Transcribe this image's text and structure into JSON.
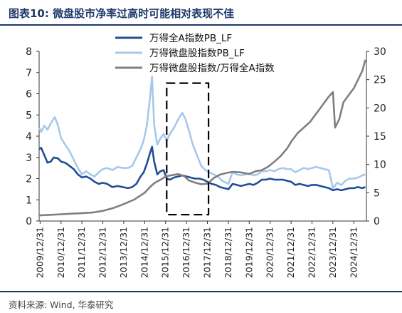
{
  "header": {
    "title": "图表10:  微盘股市净率过高时可能相对表现不佳"
  },
  "footer": {
    "source": "资料来源: Wind, 华泰研究"
  },
  "chart_data": {
    "type": "line",
    "title": "图表10:  微盘股市净率过高时可能相对表现不佳",
    "x_labels": [
      "2009/12/31",
      "2010/12/31",
      "2011/12/31",
      "2012/12/31",
      "2013/12/31",
      "2014/12/31",
      "2015/12/31",
      "2016/12/31",
      "2017/12/31",
      "2018/12/31",
      "2019/12/31",
      "2020/12/31",
      "2021/12/31",
      "2022/12/31",
      "2023/12/31",
      "2024/12/31"
    ],
    "x_range": [
      2009.95,
      2025.6
    ],
    "left_axis": {
      "ylim": [
        0,
        8
      ],
      "ticks": [
        "0",
        "1",
        "2",
        "3",
        "4",
        "5",
        "6",
        "7",
        "8"
      ]
    },
    "right_axis": {
      "ylim": [
        0,
        30
      ],
      "ticks": [
        "0",
        "5",
        "10",
        "15",
        "20",
        "25",
        "30"
      ]
    },
    "legend_position": "top-center",
    "highlight_box": {
      "x_start": 2016.05,
      "x_end": 2018.05,
      "y_left_start": 0.3,
      "y_left_end": 6.5,
      "style": "dashed"
    },
    "series": [
      {
        "name": "万得全A指数PB_LF",
        "axis": "left",
        "color": "#1f4e96",
        "points": [
          [
            2009.95,
            3.4
          ],
          [
            2010.05,
            3.45
          ],
          [
            2010.2,
            3.1
          ],
          [
            2010.35,
            2.75
          ],
          [
            2010.5,
            2.8
          ],
          [
            2010.65,
            3.0
          ],
          [
            2010.85,
            2.95
          ],
          [
            2011.0,
            2.8
          ],
          [
            2011.2,
            2.75
          ],
          [
            2011.4,
            2.6
          ],
          [
            2011.6,
            2.45
          ],
          [
            2011.8,
            2.2
          ],
          [
            2012.0,
            2.05
          ],
          [
            2012.2,
            2.1
          ],
          [
            2012.4,
            2.0
          ],
          [
            2012.6,
            1.85
          ],
          [
            2012.8,
            1.75
          ],
          [
            2013.0,
            1.8
          ],
          [
            2013.2,
            1.75
          ],
          [
            2013.45,
            1.6
          ],
          [
            2013.7,
            1.65
          ],
          [
            2013.95,
            1.6
          ],
          [
            2014.2,
            1.55
          ],
          [
            2014.4,
            1.6
          ],
          [
            2014.6,
            1.75
          ],
          [
            2014.8,
            2.1
          ],
          [
            2014.95,
            2.3
          ],
          [
            2015.1,
            2.7
          ],
          [
            2015.25,
            3.2
          ],
          [
            2015.35,
            3.5
          ],
          [
            2015.45,
            2.8
          ],
          [
            2015.6,
            2.2
          ],
          [
            2015.75,
            2.35
          ],
          [
            2015.9,
            2.4
          ],
          [
            2016.05,
            2.0
          ],
          [
            2016.2,
            1.95
          ],
          [
            2016.4,
            2.05
          ],
          [
            2016.6,
            2.1
          ],
          [
            2016.8,
            2.15
          ],
          [
            2017.0,
            2.1
          ],
          [
            2017.2,
            2.05
          ],
          [
            2017.4,
            2.0
          ],
          [
            2017.6,
            2.0
          ],
          [
            2017.8,
            1.95
          ],
          [
            2018.0,
            1.85
          ],
          [
            2018.2,
            1.75
          ],
          [
            2018.4,
            1.7
          ],
          [
            2018.6,
            1.6
          ],
          [
            2018.8,
            1.55
          ],
          [
            2019.0,
            1.5
          ],
          [
            2019.2,
            1.75
          ],
          [
            2019.4,
            1.7
          ],
          [
            2019.6,
            1.65
          ],
          [
            2019.8,
            1.7
          ],
          [
            2020.0,
            1.75
          ],
          [
            2020.2,
            1.7
          ],
          [
            2020.4,
            1.8
          ],
          [
            2020.6,
            1.95
          ],
          [
            2020.8,
            1.95
          ],
          [
            2021.0,
            2.0
          ],
          [
            2021.2,
            1.95
          ],
          [
            2021.4,
            1.95
          ],
          [
            2021.6,
            1.95
          ],
          [
            2021.8,
            1.9
          ],
          [
            2022.0,
            1.85
          ],
          [
            2022.2,
            1.7
          ],
          [
            2022.4,
            1.75
          ],
          [
            2022.6,
            1.7
          ],
          [
            2022.8,
            1.65
          ],
          [
            2023.0,
            1.7
          ],
          [
            2023.2,
            1.7
          ],
          [
            2023.4,
            1.65
          ],
          [
            2023.6,
            1.6
          ],
          [
            2023.8,
            1.55
          ],
          [
            2024.0,
            1.45
          ],
          [
            2024.2,
            1.5
          ],
          [
            2024.4,
            1.45
          ],
          [
            2024.6,
            1.5
          ],
          [
            2024.8,
            1.55
          ],
          [
            2025.0,
            1.55
          ],
          [
            2025.2,
            1.6
          ],
          [
            2025.4,
            1.55
          ],
          [
            2025.55,
            1.6
          ]
        ]
      },
      {
        "name": "万得微盘股指数PB_LF",
        "axis": "left",
        "color": "#a6c8ea",
        "points": [
          [
            2009.95,
            4.4
          ],
          [
            2010.05,
            4.2
          ],
          [
            2010.2,
            4.5
          ],
          [
            2010.35,
            4.3
          ],
          [
            2010.5,
            4.6
          ],
          [
            2010.7,
            4.9
          ],
          [
            2010.85,
            4.5
          ],
          [
            2011.0,
            3.9
          ],
          [
            2011.2,
            3.6
          ],
          [
            2011.4,
            3.3
          ],
          [
            2011.6,
            2.9
          ],
          [
            2011.8,
            2.5
          ],
          [
            2012.0,
            2.2
          ],
          [
            2012.2,
            2.35
          ],
          [
            2012.4,
            2.2
          ],
          [
            2012.6,
            2.1
          ],
          [
            2012.8,
            2.3
          ],
          [
            2013.0,
            2.45
          ],
          [
            2013.2,
            2.5
          ],
          [
            2013.45,
            2.4
          ],
          [
            2013.7,
            2.55
          ],
          [
            2013.95,
            2.5
          ],
          [
            2014.2,
            2.5
          ],
          [
            2014.4,
            2.6
          ],
          [
            2014.6,
            3.0
          ],
          [
            2014.8,
            3.4
          ],
          [
            2014.95,
            3.8
          ],
          [
            2015.1,
            4.5
          ],
          [
            2015.25,
            5.8
          ],
          [
            2015.35,
            6.8
          ],
          [
            2015.45,
            4.5
          ],
          [
            2015.6,
            3.6
          ],
          [
            2015.75,
            3.9
          ],
          [
            2015.9,
            4.1
          ],
          [
            2016.05,
            3.8
          ],
          [
            2016.2,
            4.1
          ],
          [
            2016.4,
            4.4
          ],
          [
            2016.6,
            4.8
          ],
          [
            2016.8,
            5.1
          ],
          [
            2016.95,
            4.8
          ],
          [
            2017.1,
            4.3
          ],
          [
            2017.3,
            3.6
          ],
          [
            2017.5,
            3.1
          ],
          [
            2017.7,
            2.6
          ],
          [
            2017.9,
            2.4
          ],
          [
            2018.1,
            2.3
          ],
          [
            2018.3,
            2.2
          ],
          [
            2018.5,
            2.1
          ],
          [
            2018.7,
            1.9
          ],
          [
            2018.9,
            1.8
          ],
          [
            2019.0,
            1.75
          ],
          [
            2019.2,
            2.3
          ],
          [
            2019.4,
            2.2
          ],
          [
            2019.6,
            2.15
          ],
          [
            2019.8,
            2.2
          ],
          [
            2020.0,
            2.25
          ],
          [
            2020.2,
            2.15
          ],
          [
            2020.4,
            2.2
          ],
          [
            2020.6,
            2.35
          ],
          [
            2020.8,
            2.35
          ],
          [
            2021.0,
            2.4
          ],
          [
            2021.2,
            2.35
          ],
          [
            2021.4,
            2.45
          ],
          [
            2021.6,
            2.5
          ],
          [
            2021.8,
            2.45
          ],
          [
            2022.0,
            2.45
          ],
          [
            2022.2,
            2.3
          ],
          [
            2022.4,
            2.4
          ],
          [
            2022.6,
            2.5
          ],
          [
            2022.8,
            2.45
          ],
          [
            2023.0,
            2.5
          ],
          [
            2023.2,
            2.55
          ],
          [
            2023.4,
            2.5
          ],
          [
            2023.6,
            2.45
          ],
          [
            2023.8,
            2.4
          ],
          [
            2024.0,
            1.55
          ],
          [
            2024.2,
            1.8
          ],
          [
            2024.4,
            1.7
          ],
          [
            2024.6,
            1.9
          ],
          [
            2024.8,
            2.0
          ],
          [
            2025.0,
            2.0
          ],
          [
            2025.2,
            2.05
          ],
          [
            2025.4,
            2.15
          ],
          [
            2025.55,
            2.2
          ]
        ]
      },
      {
        "name": "万得微盘股指数/万得全A指数",
        "axis": "right",
        "color": "#7f7f7f",
        "points": [
          [
            2009.95,
            1.0
          ],
          [
            2010.5,
            1.1
          ],
          [
            2011.0,
            1.2
          ],
          [
            2011.5,
            1.3
          ],
          [
            2012.0,
            1.4
          ],
          [
            2012.5,
            1.5
          ],
          [
            2013.0,
            1.8
          ],
          [
            2013.5,
            2.3
          ],
          [
            2014.0,
            3.0
          ],
          [
            2014.5,
            3.8
          ],
          [
            2015.0,
            5.0
          ],
          [
            2015.3,
            6.2
          ],
          [
            2015.5,
            6.8
          ],
          [
            2015.8,
            7.4
          ],
          [
            2016.0,
            7.9
          ],
          [
            2016.3,
            8.1
          ],
          [
            2016.6,
            8.3
          ],
          [
            2016.9,
            7.9
          ],
          [
            2017.1,
            7.2
          ],
          [
            2017.4,
            6.8
          ],
          [
            2017.7,
            6.5
          ],
          [
            2018.0,
            6.6
          ],
          [
            2018.3,
            7.6
          ],
          [
            2018.6,
            8.2
          ],
          [
            2018.9,
            8.5
          ],
          [
            2019.2,
            8.7
          ],
          [
            2019.6,
            8.6
          ],
          [
            2020.0,
            8.3
          ],
          [
            2020.3,
            8.8
          ],
          [
            2020.6,
            9.0
          ],
          [
            2020.9,
            9.6
          ],
          [
            2021.2,
            10.5
          ],
          [
            2021.5,
            11.5
          ],
          [
            2021.8,
            12.8
          ],
          [
            2022.0,
            14.0
          ],
          [
            2022.3,
            15.5
          ],
          [
            2022.6,
            16.5
          ],
          [
            2022.9,
            17.5
          ],
          [
            2023.2,
            19.0
          ],
          [
            2023.5,
            20.5
          ],
          [
            2023.8,
            22.0
          ],
          [
            2024.0,
            22.8
          ],
          [
            2024.1,
            16.5
          ],
          [
            2024.3,
            18.0
          ],
          [
            2024.5,
            21.0
          ],
          [
            2024.8,
            22.5
          ],
          [
            2025.0,
            23.5
          ],
          [
            2025.2,
            25.0
          ],
          [
            2025.4,
            26.5
          ],
          [
            2025.55,
            28.5
          ]
        ]
      }
    ]
  }
}
